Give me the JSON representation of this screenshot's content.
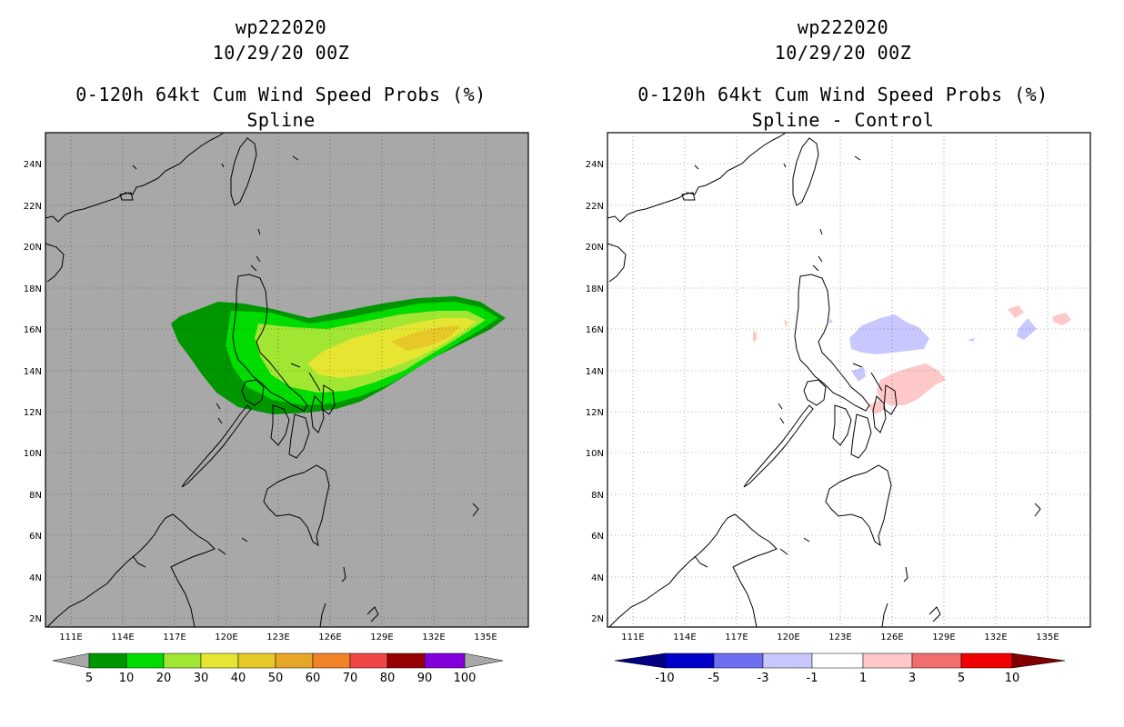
{
  "panels": [
    {
      "id": "left",
      "title_line1": "wp222020",
      "title_line2": "10/29/20 00Z",
      "title_line3": "0-120h 64kt Cum Wind Speed Probs (%)",
      "title_line4": "Spline",
      "background_color": "#a8a8a8",
      "colorbar_labels": [
        "5",
        "10",
        "20",
        "30",
        "40",
        "50",
        "60",
        "70",
        "80",
        "90",
        "100"
      ],
      "colorbar_colors": [
        "#009600",
        "#00dc00",
        "#a0e632",
        "#e6e632",
        "#e6c828",
        "#e6a628",
        "#f08228",
        "#f04646",
        "#960000",
        "#8200dc"
      ]
    },
    {
      "id": "right",
      "title_line1": "wp222020",
      "title_line2": "10/29/20 00Z",
      "title_line3": "0-120h 64kt Cum Wind Speed Probs (%)",
      "title_line4": "Spline - Control",
      "background_color": "#ffffff",
      "colorbar_labels": [
        "-10",
        "-5",
        "-3",
        "-1",
        "1",
        "3",
        "5",
        "10"
      ],
      "colorbar_colors": [
        "#0000c8",
        "#6e6ef0",
        "#c8c8ff",
        "#ffffff",
        "#ffc8c8",
        "#f06e6e",
        "#f00000"
      ]
    }
  ],
  "axes": {
    "lon_labels": [
      "111E",
      "114E",
      "117E",
      "120E",
      "123E",
      "126E",
      "129E",
      "132E",
      "135E"
    ],
    "lat_labels": [
      "24N",
      "22N",
      "20N",
      "18N",
      "16N",
      "14N",
      "12N",
      "10N",
      "8N",
      "6N",
      "4N",
      "2N"
    ]
  },
  "colors": {
    "end_triangle_left": "#a8a8a8",
    "end_triangle_right_low": "#000080",
    "end_triangle_right_high": "#800000"
  }
}
